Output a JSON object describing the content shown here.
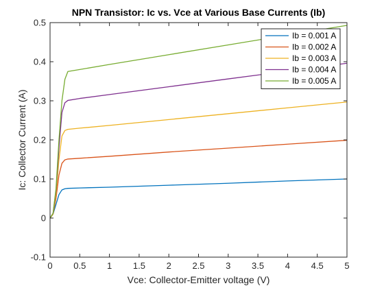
{
  "chart_data": {
    "type": "line",
    "title": "NPN Transistor: Ic vs. Vce at Various Base Currents (Ib)",
    "xlabel": "Vce: Collector-Emitter voltage (V)",
    "ylabel": "Ic: Collector Current (A)",
    "xlim": [
      0,
      5
    ],
    "ylim": [
      -0.1,
      0.5
    ],
    "xticks": [
      0,
      0.5,
      1,
      1.5,
      2,
      2.5,
      3,
      3.5,
      4,
      4.5,
      5
    ],
    "xtick_labels": [
      "0",
      "0.5",
      "1",
      "1.5",
      "2",
      "2.5",
      "3",
      "3.5",
      "4",
      "4.5",
      "5"
    ],
    "yticks": [
      -0.1,
      0,
      0.1,
      0.2,
      0.3,
      0.4,
      0.5
    ],
    "ytick_labels": [
      "-0.1",
      "0",
      "0.1",
      "0.2",
      "0.3",
      "0.4",
      "0.5"
    ],
    "grid": false,
    "legend_position": "top-right",
    "series": [
      {
        "name": "Ib = 0.001 A",
        "color": "#0072BD",
        "x": [
          0,
          0.05,
          0.1,
          0.15,
          0.2,
          0.25,
          0.3,
          0.5,
          1,
          2,
          3,
          4,
          5
        ],
        "y": [
          0,
          0.01,
          0.035,
          0.06,
          0.072,
          0.075,
          0.076,
          0.077,
          0.079,
          0.084,
          0.089,
          0.095,
          0.1
        ]
      },
      {
        "name": "Ib = 0.002 A",
        "color": "#D95319",
        "x": [
          0,
          0.05,
          0.1,
          0.15,
          0.2,
          0.25,
          0.3,
          0.5,
          1,
          2,
          3,
          4,
          5
        ],
        "y": [
          0,
          0.01,
          0.05,
          0.11,
          0.14,
          0.149,
          0.151,
          0.153,
          0.158,
          0.169,
          0.179,
          0.189,
          0.199
        ]
      },
      {
        "name": "Ib = 0.003 A",
        "color": "#EDB120",
        "x": [
          0,
          0.05,
          0.1,
          0.15,
          0.2,
          0.25,
          0.3,
          0.5,
          1,
          2,
          3,
          4,
          5
        ],
        "y": [
          0,
          0.01,
          0.06,
          0.15,
          0.21,
          0.224,
          0.227,
          0.23,
          0.237,
          0.252,
          0.267,
          0.282,
          0.297
        ]
      },
      {
        "name": "Ib = 0.004 A",
        "color": "#7E2F8E",
        "x": [
          0,
          0.05,
          0.1,
          0.15,
          0.2,
          0.25,
          0.3,
          0.5,
          1,
          2,
          3,
          4,
          5
        ],
        "y": [
          0,
          0.012,
          0.07,
          0.18,
          0.27,
          0.295,
          0.301,
          0.306,
          0.316,
          0.336,
          0.356,
          0.376,
          0.396
        ]
      },
      {
        "name": "Ib = 0.005 A",
        "color": "#77AC30",
        "x": [
          0,
          0.05,
          0.1,
          0.15,
          0.2,
          0.25,
          0.3,
          0.5,
          1,
          2,
          3,
          4,
          5
        ],
        "y": [
          0,
          0.012,
          0.075,
          0.2,
          0.3,
          0.355,
          0.375,
          0.38,
          0.393,
          0.418,
          0.443,
          0.468,
          0.493
        ]
      }
    ]
  }
}
